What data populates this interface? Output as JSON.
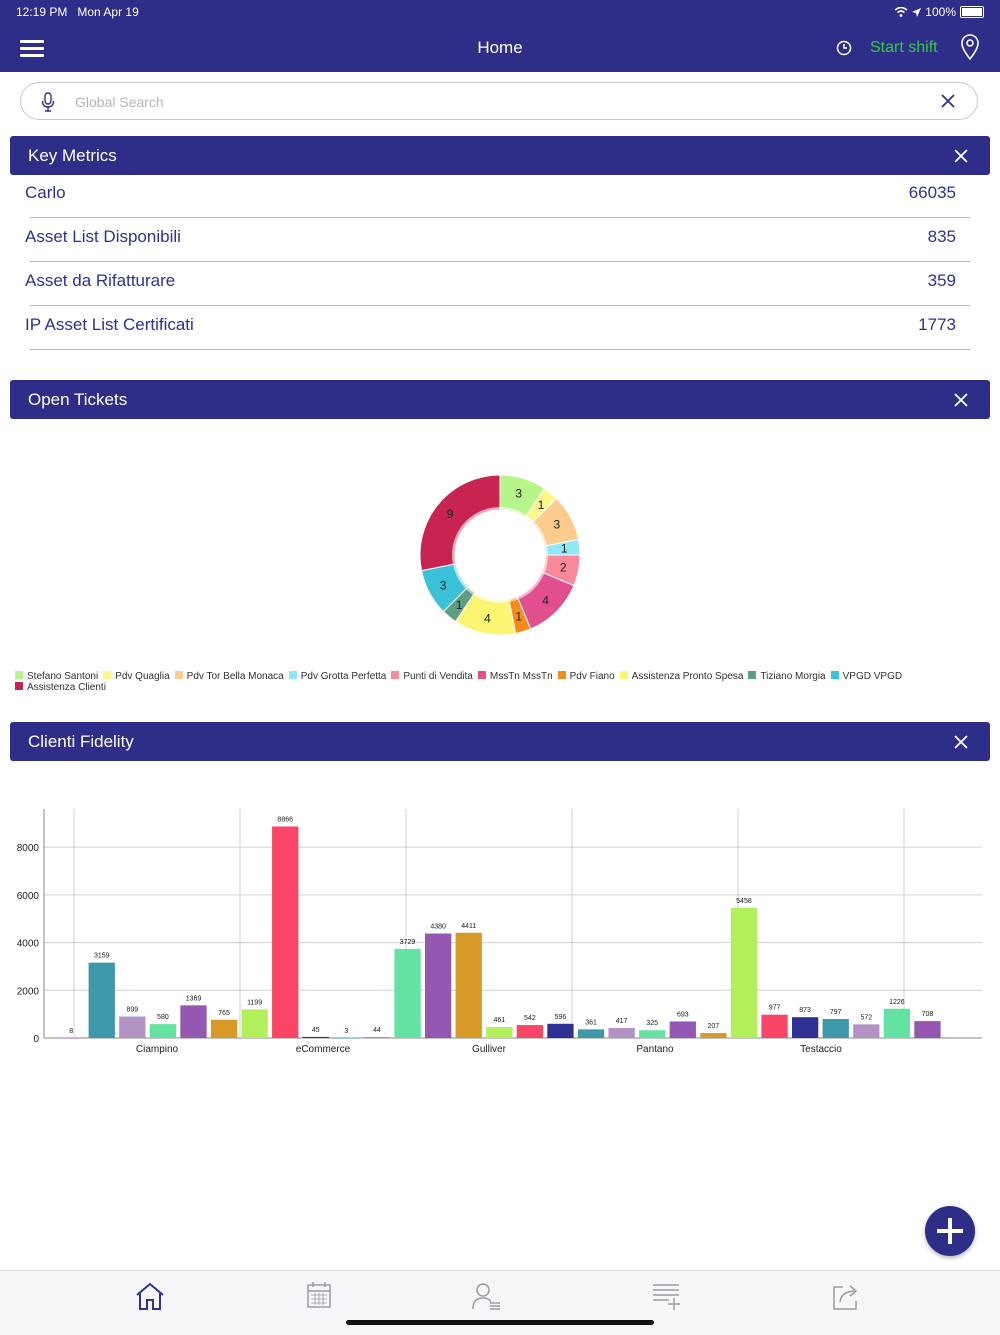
{
  "status_bar": {
    "time": "12:19 PM",
    "date": "Mon Apr 19",
    "battery": "100%"
  },
  "nav": {
    "title": "Home",
    "start_shift": "Start shift"
  },
  "search": {
    "placeholder": "Global Search"
  },
  "key_metrics": {
    "title": "Key Metrics",
    "rows": [
      {
        "label": "Carlo",
        "value": "66035"
      },
      {
        "label": "Asset List Disponibili",
        "value": "835"
      },
      {
        "label": "Asset da Rifatturare",
        "value": "359"
      },
      {
        "label": "IP Asset List Certificati",
        "value": "1773"
      }
    ]
  },
  "open_tickets": {
    "title": "Open Tickets"
  },
  "clienti_fidelity": {
    "title": "Clienti Fidelity"
  },
  "colors": {
    "primary": "#2e2e88",
    "accent_green": "#2ecc40",
    "text_blue": "#2e3192"
  },
  "chart_data": [
    {
      "type": "pie",
      "donut": true,
      "slices": [
        {
          "label": "Stefano Santoni",
          "value": 3,
          "color": "#b6f58a"
        },
        {
          "label": "Pdv Quaglia",
          "value": 1,
          "color": "#fbf78a"
        },
        {
          "label": "Pdv Tor Bella Monaca",
          "value": 3,
          "color": "#fdcb8c"
        },
        {
          "label": "Pdv Grotta Perfetta",
          "value": 1,
          "color": "#8ee8f8"
        },
        {
          "label": "Punti di Vendita",
          "value": 2,
          "color": "#f98a9b"
        },
        {
          "label": "MssTn MssTn",
          "value": 4,
          "color": "#e14f8e"
        },
        {
          "label": "Pdv Fiano",
          "value": 1,
          "color": "#f48c1a"
        },
        {
          "label": "Assistenza Pronto Spesa",
          "value": 4,
          "color": "#fbf571"
        },
        {
          "label": "Tiziano Morgia",
          "value": 1,
          "color": "#5f9e82"
        },
        {
          "label": "VPGD VPGD",
          "value": 3,
          "color": "#3bc1d8"
        },
        {
          "label": "Assistenza Clienti",
          "value": 9,
          "color": "#c72451"
        }
      ],
      "legend": "bottom"
    },
    {
      "type": "bar",
      "categories": [
        "Ciampino",
        "eCommerce",
        "Gulliver",
        "Pantano",
        "Testaccio"
      ],
      "ylim": [
        0,
        9600
      ],
      "yticks": [
        0,
        2000,
        4000,
        6000,
        8000
      ],
      "grid": true,
      "bars": [
        {
          "value": 8,
          "color": "#a855c9"
        },
        {
          "value": 3159,
          "color": "#3d98a9"
        },
        {
          "value": 899,
          "color": "#b392c4"
        },
        {
          "value": 580,
          "color": "#62e3a1"
        },
        {
          "value": 1369,
          "color": "#9558b2"
        },
        {
          "value": 765,
          "color": "#d79a27"
        },
        {
          "value": 1199,
          "color": "#b1f05a"
        },
        {
          "value": 8866,
          "color": "#fb4566"
        },
        {
          "value": 45,
          "color": "#2e3192"
        },
        {
          "value": 3,
          "color": "#3d98a9"
        },
        {
          "value": 44,
          "color": "#b392c4"
        },
        {
          "value": 3729,
          "color": "#62e3a1"
        },
        {
          "value": 4380,
          "color": "#9558b2"
        },
        {
          "value": 4411,
          "color": "#d79a27"
        },
        {
          "value": 461,
          "color": "#b1f05a"
        },
        {
          "value": 542,
          "color": "#fb4566"
        },
        {
          "value": 596,
          "color": "#2e3192"
        },
        {
          "value": 361,
          "color": "#3d98a9"
        },
        {
          "value": 417,
          "color": "#b392c4"
        },
        {
          "value": 325,
          "color": "#62e3a1"
        },
        {
          "value": 693,
          "color": "#9558b2"
        },
        {
          "value": 207,
          "color": "#d79a27"
        },
        {
          "value": 5458,
          "color": "#b1f05a"
        },
        {
          "value": 977,
          "color": "#fb4566"
        },
        {
          "value": 873,
          "color": "#2e3192"
        },
        {
          "value": 797,
          "color": "#3d98a9"
        },
        {
          "value": 572,
          "color": "#b392c4"
        },
        {
          "value": 1226,
          "color": "#62e3a1"
        },
        {
          "value": 708,
          "color": "#9558b2"
        }
      ]
    }
  ]
}
